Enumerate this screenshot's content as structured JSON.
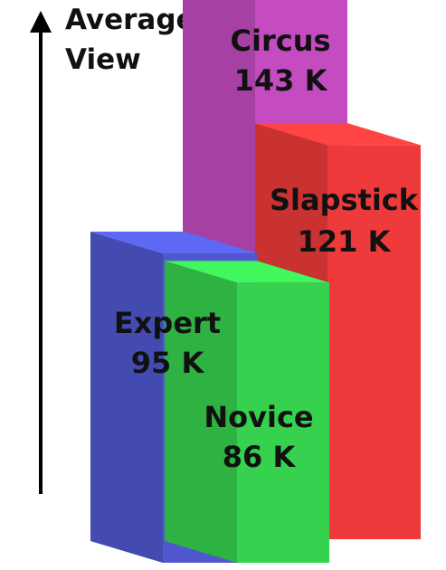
{
  "chart_data": {
    "type": "bar",
    "ylabel": "Average View",
    "unit": "K",
    "categories": [
      "Circus",
      "Slapstick",
      "Expert",
      "Novice"
    ],
    "values": [
      143,
      121,
      95,
      86
    ],
    "labels": [
      "143 K",
      "121 K",
      "95 K",
      "86 K"
    ],
    "colors": [
      "#c44bc0",
      "#ee3a3a",
      "#4f58cf",
      "#36d14e"
    ]
  },
  "axis": {
    "line1": "Average",
    "line2": "View"
  }
}
